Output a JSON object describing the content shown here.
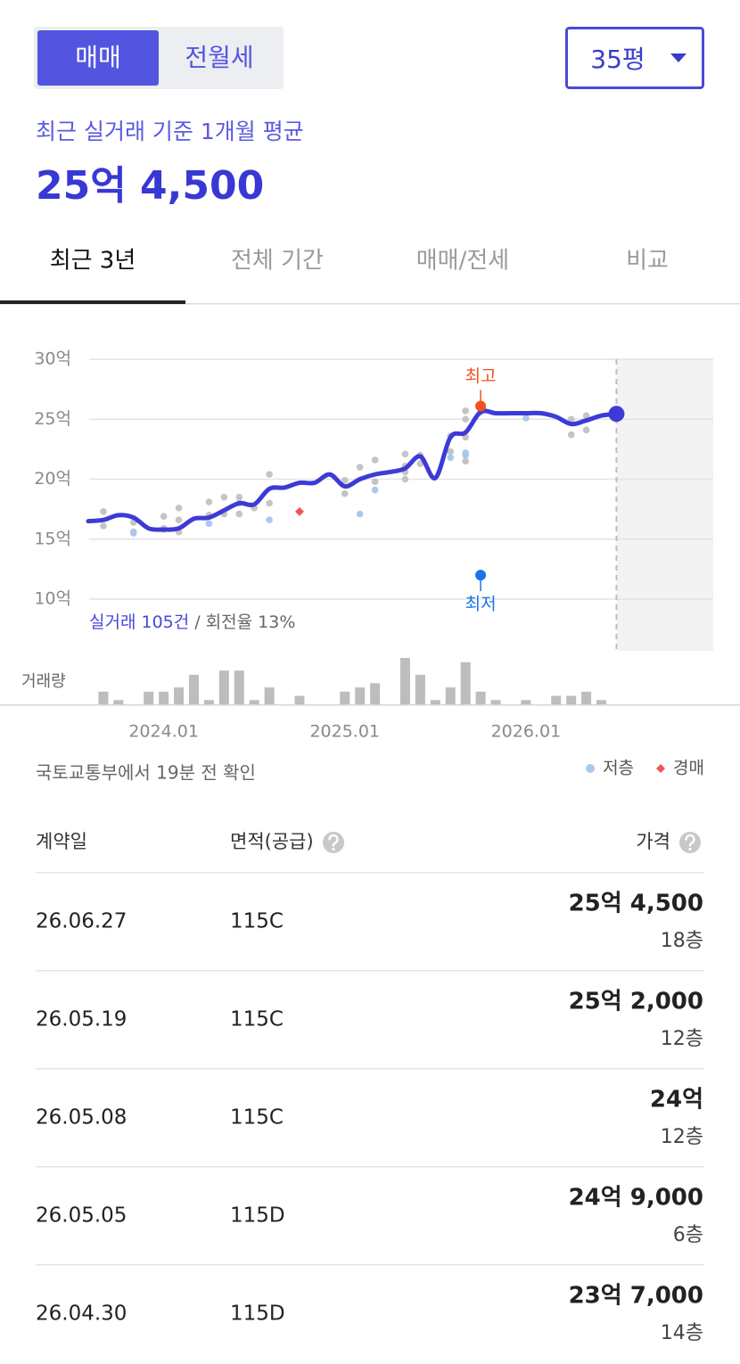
{
  "deal_tabs": [
    {
      "label": "매매",
      "selected": true
    },
    {
      "label": "전월세",
      "selected": false
    }
  ],
  "area_select": "35평",
  "summary": {
    "caption": "최근 실거래 기준 1개월 평균",
    "price": "25억 4,500"
  },
  "period_tabs": [
    {
      "label": "최근 3년",
      "selected": true
    },
    {
      "label": "전체 기간",
      "selected": false
    },
    {
      "label": "매매/전세",
      "selected": false
    },
    {
      "label": "비교",
      "selected": false
    }
  ],
  "chart_data": {
    "type": "line",
    "xlim": [
      "2023.08",
      "2027.01"
    ],
    "xticks": [
      "2024.01",
      "2025.01",
      "2026.01"
    ],
    "ylim": [
      10,
      30
    ],
    "yticks": [
      {
        "value": 30,
        "label": "30억"
      },
      {
        "value": 25,
        "label": "25억"
      },
      {
        "value": 20,
        "label": "20억"
      },
      {
        "value": 15,
        "label": "15억"
      },
      {
        "value": 10,
        "label": "10억"
      }
    ],
    "grid": true,
    "series": [
      {
        "type": "line",
        "color": "#3d3ad8",
        "x": [
          "2023.08",
          "2023.09",
          "2023.10",
          "2023.11",
          "2023.12",
          "2024.01",
          "2024.02",
          "2024.03",
          "2024.04",
          "2024.05",
          "2024.06",
          "2024.07",
          "2024.08",
          "2024.09",
          "2024.10",
          "2024.11",
          "2024.12",
          "2025.01",
          "2025.02",
          "2025.03",
          "2025.04",
          "2025.05",
          "2025.06",
          "2025.07",
          "2025.08",
          "2025.09",
          "2025.10",
          "2025.11",
          "2025.12",
          "2026.01",
          "2026.02",
          "2026.03",
          "2026.04",
          "2026.05",
          "2026.06",
          "2026.07"
        ],
        "values": [
          16.5,
          16.6,
          17.0,
          16.8,
          15.9,
          15.8,
          15.9,
          16.7,
          16.8,
          17.4,
          18.0,
          17.9,
          19.2,
          19.3,
          19.7,
          19.7,
          20.4,
          19.4,
          20.0,
          20.4,
          20.6,
          20.9,
          21.9,
          20.1,
          23.5,
          23.9,
          25.6,
          25.5,
          25.5,
          25.5,
          25.5,
          25.2,
          24.6,
          24.9,
          25.3,
          25.45
        ]
      },
      {
        "type": "scatter",
        "color": "#c4c4c4",
        "x": [
          "2023.09",
          "2023.09",
          "2023.11",
          "2023.11",
          "2024.01",
          "2024.01",
          "2024.01",
          "2024.02",
          "2024.02",
          "2024.02",
          "2024.04",
          "2024.04",
          "2024.05",
          "2024.05",
          "2024.06",
          "2024.06",
          "2024.06",
          "2024.07",
          "2024.08",
          "2024.08",
          "2025.01",
          "2025.01",
          "2025.02",
          "2025.03",
          "2025.03",
          "2025.05",
          "2025.05",
          "2025.05",
          "2025.05",
          "2025.06",
          "2025.06",
          "2025.08",
          "2025.08",
          "2025.09",
          "2025.09",
          "2025.09",
          "2025.09",
          "2025.10",
          "2025.10",
          "2026.04",
          "2026.04",
          "2026.05",
          "2026.05"
        ],
        "values": [
          17.3,
          16.1,
          16.4,
          15.6,
          15.8,
          16.9,
          15.9,
          17.6,
          16.6,
          15.6,
          18.1,
          17.0,
          18.5,
          17.1,
          18.5,
          18.0,
          17.1,
          17.6,
          20.4,
          18.0,
          19.9,
          18.8,
          21.0,
          21.6,
          19.8,
          22.1,
          21.1,
          20.6,
          20.0,
          22.0,
          21.3,
          23.6,
          22.3,
          25.7,
          25.0,
          23.5,
          21.5,
          25.6,
          26.0,
          25.0,
          23.7,
          25.3,
          24.1
        ]
      },
      {
        "name": "저층",
        "type": "scatter",
        "color": "#a9c8f0",
        "x": [
          "2023.11",
          "2024.04",
          "2024.08",
          "2025.02",
          "2025.03",
          "2025.08",
          "2025.09",
          "2025.09",
          "2026.01"
        ],
        "values": [
          15.5,
          16.3,
          16.6,
          17.1,
          19.1,
          21.8,
          22.2,
          22.0,
          25.1
        ]
      },
      {
        "name": "경매",
        "type": "scatter",
        "marker": "diamond",
        "color": "#f0555a",
        "x": [
          "2024.10"
        ],
        "values": [
          17.3
        ]
      }
    ],
    "annotations": [
      {
        "label": "최고",
        "x": "2025.10",
        "value": 26.1,
        "color": "#f4511e"
      },
      {
        "label": "최저",
        "x": "2025.10",
        "value": 12,
        "color": "#1a73e8"
      }
    ],
    "stats": {
      "count": "실거래 105건",
      "turnover": "/ 회전율 13%"
    },
    "volume": {
      "label": "거래량",
      "color": "#bdbdbd",
      "values": [
        0,
        3,
        1,
        0,
        3,
        3,
        4,
        7,
        1,
        8,
        8,
        1,
        4,
        0,
        2,
        0,
        0,
        3,
        4,
        5,
        0,
        11,
        7,
        1,
        4,
        10,
        3,
        1,
        0,
        1,
        0,
        2,
        2,
        3,
        1,
        0
      ]
    }
  },
  "source": "국토교통부에서 19분 전 확인",
  "table": {
    "headers": [
      "계약일",
      "면적(공급)",
      "가격"
    ],
    "rows": [
      {
        "date": "26.06.27",
        "area": "115C",
        "price": "25억 4,500",
        "floor": "18층"
      },
      {
        "date": "26.05.19",
        "area": "115C",
        "price": "25억 2,000",
        "floor": "12층"
      },
      {
        "date": "26.05.08",
        "area": "115C",
        "price": "24억",
        "floor": "12층"
      },
      {
        "date": "26.05.05",
        "area": "115D",
        "price": "24억 9,000",
        "floor": "6층"
      },
      {
        "date": "26.04.30",
        "area": "115D",
        "price": "23억 7,000",
        "floor": "14층"
      }
    ]
  }
}
